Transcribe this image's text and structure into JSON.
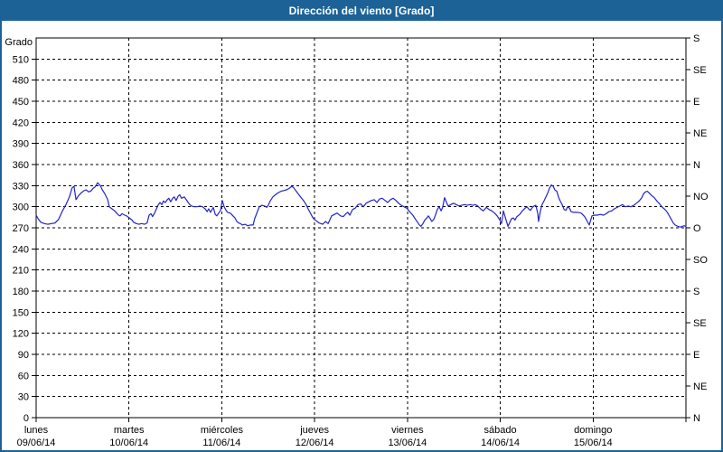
{
  "window": {
    "title": "Dirección del viento [Grado]"
  },
  "colors": {
    "titlebar_bg": "#1c6296",
    "titlebar_text": "#ffffff",
    "frame": "#1c6296",
    "plot_bg": "#ffffff",
    "axis": "#000000",
    "grid": "#000000",
    "line": "#2323cb"
  },
  "chart_data": {
    "type": "line",
    "title": "Dirección del viento [Grado]",
    "x_axis": {
      "total_hours": 168,
      "days": [
        {
          "name": "lunes",
          "date": "09/06/14"
        },
        {
          "name": "martes",
          "date": "10/06/14"
        },
        {
          "name": "miércoles",
          "date": "11/06/14"
        },
        {
          "name": "jueves",
          "date": "12/06/14"
        },
        {
          "name": "viernes",
          "date": "13/06/14"
        },
        {
          "name": "sábado",
          "date": "14/06/14"
        },
        {
          "name": "domingo",
          "date": "15/06/14"
        }
      ]
    },
    "y_axis_left": {
      "label": "Grado",
      "min": 0,
      "max": 540,
      "tick_step": 30,
      "last_labeled_tick": 510
    },
    "y_axis_right": {
      "tick_step": 45,
      "labels_top_to_bottom": [
        "S",
        "SE",
        "E",
        "NE",
        "N",
        "NO",
        "O",
        "SO",
        "S",
        "SE",
        "E",
        "NE",
        "N"
      ]
    },
    "grid": {
      "horizontal_step_deg": 30,
      "vertical_every_day": true,
      "style": "dashed"
    },
    "series": [
      {
        "name": "Dirección del viento",
        "unit": "Grado",
        "color": "#2323cb",
        "points": [
          [
            0,
            288
          ],
          [
            0.5,
            283
          ],
          [
            1.2,
            278
          ],
          [
            2.1,
            276
          ],
          [
            3,
            275
          ],
          [
            4,
            276
          ],
          [
            4.9,
            277
          ],
          [
            5.8,
            282
          ],
          [
            6.8,
            294
          ],
          [
            7.7,
            303
          ],
          [
            8.6,
            314
          ],
          [
            9.3,
            327
          ],
          [
            9.8,
            329
          ],
          [
            10.3,
            310
          ],
          [
            11,
            316
          ],
          [
            11.7,
            320
          ],
          [
            12.4,
            323
          ],
          [
            12.9,
            324
          ],
          [
            13.6,
            321
          ],
          [
            14.3,
            323
          ],
          [
            14.7,
            326
          ],
          [
            15.2,
            328
          ],
          [
            15.9,
            334
          ],
          [
            16.6,
            330
          ],
          [
            17.1,
            324
          ],
          [
            17.8,
            318
          ],
          [
            18.5,
            310
          ],
          [
            18.9,
            300
          ],
          [
            19.6,
            297
          ],
          [
            20.3,
            294
          ],
          [
            20.8,
            291
          ],
          [
            21.3,
            288
          ],
          [
            21.7,
            287
          ],
          [
            22.2,
            290
          ],
          [
            22.9,
            288
          ],
          [
            23.4,
            287
          ],
          [
            24.1,
            284
          ],
          [
            24.8,
            281
          ],
          [
            25.2,
            278
          ],
          [
            25.9,
            276
          ],
          [
            26.6,
            275
          ],
          [
            27.3,
            276
          ],
          [
            28,
            275
          ],
          [
            28.7,
            277
          ],
          [
            29.2,
            288
          ],
          [
            29.7,
            290
          ],
          [
            30.1,
            286
          ],
          [
            30.6,
            291
          ],
          [
            31.1,
            297
          ],
          [
            31.5,
            302
          ],
          [
            32,
            306
          ],
          [
            32.5,
            303
          ],
          [
            32.9,
            308
          ],
          [
            33.4,
            306
          ],
          [
            33.9,
            310
          ],
          [
            34.3,
            312
          ],
          [
            34.8,
            307
          ],
          [
            35.3,
            312
          ],
          [
            35.7,
            314
          ],
          [
            36.2,
            309
          ],
          [
            36.7,
            315
          ],
          [
            37.1,
            317
          ],
          [
            37.6,
            312
          ],
          [
            38.3,
            314
          ],
          [
            38.8,
            310
          ],
          [
            39.3,
            306
          ],
          [
            39.7,
            303
          ],
          [
            40.2,
            301
          ],
          [
            40.9,
            300
          ],
          [
            41.6,
            300
          ],
          [
            42.3,
            301
          ],
          [
            43,
            300
          ],
          [
            43.7,
            297
          ],
          [
            44.2,
            293
          ],
          [
            44.6,
            297
          ],
          [
            45.1,
            292
          ],
          [
            45.8,
            299
          ],
          [
            46.3,
            289
          ],
          [
            46.7,
            287
          ],
          [
            47.2,
            291
          ],
          [
            47.7,
            295
          ],
          [
            48.1,
            309
          ],
          [
            48.6,
            300
          ],
          [
            49.1,
            295
          ],
          [
            49.5,
            292
          ],
          [
            50.2,
            291
          ],
          [
            50.9,
            287
          ],
          [
            51.4,
            284
          ],
          [
            51.9,
            279
          ],
          [
            52.3,
            277
          ],
          [
            52.8,
            276
          ],
          [
            53.3,
            274
          ],
          [
            54,
            275
          ],
          [
            54.7,
            273
          ],
          [
            55.4,
            274
          ],
          [
            56.1,
            274
          ],
          [
            56.5,
            283
          ],
          [
            57.2,
            293
          ],
          [
            57.7,
            300
          ],
          [
            58.4,
            302
          ],
          [
            59.1,
            301
          ],
          [
            59.6,
            299
          ],
          [
            60,
            302
          ],
          [
            60.5,
            308
          ],
          [
            61.2,
            314
          ],
          [
            61.9,
            317
          ],
          [
            62.6,
            320
          ],
          [
            63.3,
            322
          ],
          [
            64,
            323
          ],
          [
            64.7,
            324
          ],
          [
            65.4,
            326
          ],
          [
            66.1,
            329
          ],
          [
            66.6,
            327
          ],
          [
            67.1,
            323
          ],
          [
            67.8,
            318
          ],
          [
            68.5,
            313
          ],
          [
            69.2,
            308
          ],
          [
            69.9,
            302
          ],
          [
            70.3,
            297
          ],
          [
            70.8,
            292
          ],
          [
            71.3,
            287
          ],
          [
            71.7,
            283
          ],
          [
            72.4,
            280
          ],
          [
            73.1,
            277
          ],
          [
            74.1,
            275
          ],
          [
            74.8,
            279
          ],
          [
            75.5,
            276
          ],
          [
            76.4,
            287
          ],
          [
            77.1,
            289
          ],
          [
            77.8,
            291
          ],
          [
            78.7,
            287
          ],
          [
            79.4,
            286
          ],
          [
            80.1,
            290
          ],
          [
            80.6,
            292
          ],
          [
            81.1,
            288
          ],
          [
            81.8,
            296
          ],
          [
            82.5,
            298
          ],
          [
            83.2,
            303
          ],
          [
            83.9,
            304
          ],
          [
            84.6,
            300
          ],
          [
            85.3,
            305
          ],
          [
            86,
            307
          ],
          [
            86.7,
            309
          ],
          [
            87.4,
            310
          ],
          [
            88.1,
            306
          ],
          [
            88.8,
            311
          ],
          [
            89.5,
            312
          ],
          [
            90.2,
            309
          ],
          [
            90.9,
            306
          ],
          [
            91.6,
            310
          ],
          [
            92.3,
            312
          ],
          [
            93,
            309
          ],
          [
            93.7,
            305
          ],
          [
            94.4,
            302
          ],
          [
            95.1,
            300
          ],
          [
            95.8,
            298
          ],
          [
            96.3,
            295
          ],
          [
            96.7,
            292
          ],
          [
            97.4,
            288
          ],
          [
            98.1,
            282
          ],
          [
            98.6,
            278
          ],
          [
            99.1,
            274
          ],
          [
            99.5,
            272
          ],
          [
            100,
            276
          ],
          [
            100.5,
            281
          ],
          [
            101,
            284
          ],
          [
            101.4,
            287
          ],
          [
            101.9,
            283
          ],
          [
            102.3,
            279
          ],
          [
            102.8,
            282
          ],
          [
            103.3,
            289
          ],
          [
            103.7,
            296
          ],
          [
            104.2,
            300
          ],
          [
            104.7,
            294
          ],
          [
            105.1,
            299
          ],
          [
            105.6,
            313
          ],
          [
            106.1,
            306
          ],
          [
            106.5,
            301
          ],
          [
            107.2,
            303
          ],
          [
            107.9,
            305
          ],
          [
            108.6,
            303
          ],
          [
            109.3,
            301
          ],
          [
            110,
            302
          ],
          [
            110.8,
            303
          ],
          [
            111.5,
            302
          ],
          [
            112.2,
            303
          ],
          [
            112.9,
            302
          ],
          [
            113.5,
            303
          ],
          [
            114.2,
            301
          ],
          [
            114.9,
            297
          ],
          [
            115.6,
            294
          ],
          [
            116.4,
            299
          ],
          [
            117.1,
            296
          ],
          [
            117.8,
            294
          ],
          [
            118.5,
            291
          ],
          [
            119.2,
            287
          ],
          [
            119.9,
            281
          ],
          [
            120.3,
            276
          ],
          [
            120.8,
            294
          ],
          [
            121.5,
            281
          ],
          [
            122,
            272
          ],
          [
            122.4,
            277
          ],
          [
            122.9,
            283
          ],
          [
            123.4,
            284
          ],
          [
            123.8,
            281
          ],
          [
            124.3,
            286
          ],
          [
            125,
            289
          ],
          [
            125.7,
            294
          ],
          [
            126.4,
            298
          ],
          [
            126.9,
            300
          ],
          [
            127.3,
            297
          ],
          [
            127.8,
            295
          ],
          [
            128.3,
            299
          ],
          [
            128.7,
            301
          ],
          [
            129.2,
            302
          ],
          [
            129.7,
            290
          ],
          [
            129.9,
            279
          ],
          [
            130.4,
            295
          ],
          [
            130.8,
            303
          ],
          [
            131.3,
            308
          ],
          [
            131.8,
            314
          ],
          [
            132.3,
            320
          ],
          [
            132.7,
            326
          ],
          [
            133.2,
            331
          ],
          [
            133.7,
            329
          ],
          [
            134.1,
            324
          ],
          [
            134.6,
            322
          ],
          [
            135.1,
            313
          ],
          [
            135.5,
            308
          ],
          [
            136,
            303
          ],
          [
            136.5,
            296
          ],
          [
            137,
            295
          ],
          [
            137.4,
            300
          ],
          [
            137.9,
            298
          ],
          [
            138.3,
            293
          ],
          [
            139,
            292
          ],
          [
            140,
            292
          ],
          [
            140.9,
            291
          ],
          [
            141.8,
            286
          ],
          [
            142.5,
            279
          ],
          [
            143,
            274
          ],
          [
            143.7,
            287
          ],
          [
            144.4,
            288
          ],
          [
            145.1,
            288
          ],
          [
            145.8,
            289
          ],
          [
            146.7,
            288
          ],
          [
            147.4,
            290
          ],
          [
            148.1,
            293
          ],
          [
            148.8,
            294
          ],
          [
            149.5,
            297
          ],
          [
            150.2,
            299
          ],
          [
            150.9,
            301
          ],
          [
            151.6,
            303
          ],
          [
            152.3,
            300
          ],
          [
            153.1,
            301
          ],
          [
            153.8,
            300
          ],
          [
            154.5,
            302
          ],
          [
            155.2,
            305
          ],
          [
            155.9,
            308
          ],
          [
            156.6,
            313
          ],
          [
            157,
            318
          ],
          [
            157.5,
            321
          ],
          [
            158,
            322
          ],
          [
            158.4,
            320
          ],
          [
            159.1,
            316
          ],
          [
            159.8,
            313
          ],
          [
            160.5,
            308
          ],
          [
            161.2,
            304
          ],
          [
            161.9,
            299
          ],
          [
            162.4,
            297
          ],
          [
            162.9,
            294
          ],
          [
            163.3,
            291
          ],
          [
            163.8,
            286
          ],
          [
            164.3,
            281
          ],
          [
            164.7,
            277
          ],
          [
            165.2,
            274
          ],
          [
            165.9,
            272
          ],
          [
            166.6,
            271
          ],
          [
            167.1,
            272
          ],
          [
            167.5,
            273
          ],
          [
            168,
            272
          ]
        ]
      }
    ]
  }
}
